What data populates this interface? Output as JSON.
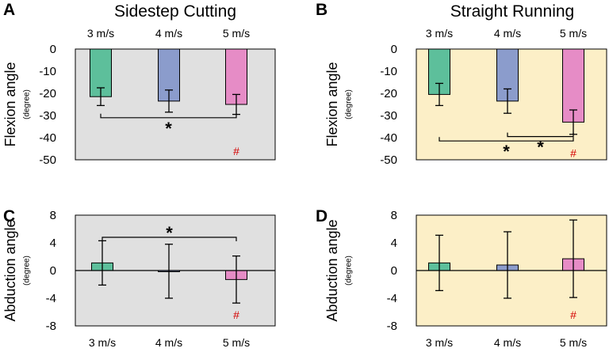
{
  "chart_data": [
    {
      "id": "A",
      "type": "bar",
      "panel_label": "A",
      "title": "Sidestep Cutting",
      "categories": [
        "3 m/s",
        "4 m/s",
        "5 m/s"
      ],
      "category_labels_position": "top",
      "values": [
        -21.5,
        -23.5,
        -25
      ],
      "errors": [
        4,
        5,
        4.5
      ],
      "colors": [
        "#5dbf9b",
        "#8b9ccc",
        "#e68cc6"
      ],
      "ylabel": "Flexion angle",
      "yunit": "(degree)",
      "ylim": [
        -50,
        0
      ],
      "yticks": [
        0,
        -10,
        -20,
        -30,
        -40,
        -50
      ],
      "background": "#e0e0e0",
      "brackets": [
        {
          "from": 0,
          "to": 2,
          "y": -31,
          "label": "*"
        }
      ],
      "marks": [
        {
          "category": 2,
          "y": -46,
          "label": "#"
        }
      ]
    },
    {
      "id": "B",
      "type": "bar",
      "panel_label": "B",
      "title": "Straight Running",
      "categories": [
        "3 m/s",
        "4 m/s",
        "5 m/s"
      ],
      "category_labels_position": "top",
      "values": [
        -20.5,
        -23.5,
        -33
      ],
      "errors": [
        5,
        5.5,
        5.5
      ],
      "colors": [
        "#5dbf9b",
        "#8b9ccc",
        "#e68cc6"
      ],
      "ylabel": "Flexion angle",
      "yunit": "(degree)",
      "ylim": [
        -50,
        0
      ],
      "yticks": [
        0,
        -10,
        -20,
        -30,
        -40,
        -50
      ],
      "background": "#fcefc7",
      "brackets": [
        {
          "from": 1,
          "to": 2,
          "y": -39.5,
          "label": "*"
        },
        {
          "from": 0,
          "to": 2,
          "y": -41.5,
          "label": "*"
        }
      ],
      "marks": [
        {
          "category": 2,
          "y": -47,
          "label": "#"
        }
      ]
    },
    {
      "id": "C",
      "type": "bar",
      "panel_label": "C",
      "title": "",
      "categories": [
        "3 m/s",
        "4 m/s",
        "5 m/s"
      ],
      "category_labels_position": "bottom",
      "values": [
        1.1,
        -0.1,
        -1.3
      ],
      "errors": [
        3.2,
        3.9,
        3.4
      ],
      "colors": [
        "#5dbf9b",
        "#8b9ccc",
        "#e68cc6"
      ],
      "ylabel": "Abduction angle",
      "yunit": "(degree)",
      "ylim": [
        -8,
        8
      ],
      "yticks": [
        8,
        4,
        0,
        -4,
        -8
      ],
      "background": "#e0e0e0",
      "brackets": [
        {
          "from": 0,
          "to": 2,
          "y": 4.8,
          "label": "*"
        }
      ],
      "marks": [
        {
          "category": 2,
          "y": -6.4,
          "label": "#"
        }
      ]
    },
    {
      "id": "D",
      "type": "bar",
      "panel_label": "D",
      "title": "",
      "categories": [
        "3 m/s",
        "4 m/s",
        "5 m/s"
      ],
      "category_labels_position": "bottom",
      "values": [
        1.1,
        0.8,
        1.7
      ],
      "errors": [
        4.0,
        4.8,
        5.6
      ],
      "colors": [
        "#5dbf9b",
        "#8b9ccc",
        "#e68cc6"
      ],
      "ylabel": "Abduction angle",
      "yunit": "(degree)",
      "ylim": [
        -8,
        8
      ],
      "yticks": [
        8,
        4,
        0,
        -4,
        -8
      ],
      "background": "#fcefc7",
      "brackets": [],
      "marks": [
        {
          "category": 2,
          "y": -6.4,
          "label": "#"
        }
      ]
    }
  ]
}
